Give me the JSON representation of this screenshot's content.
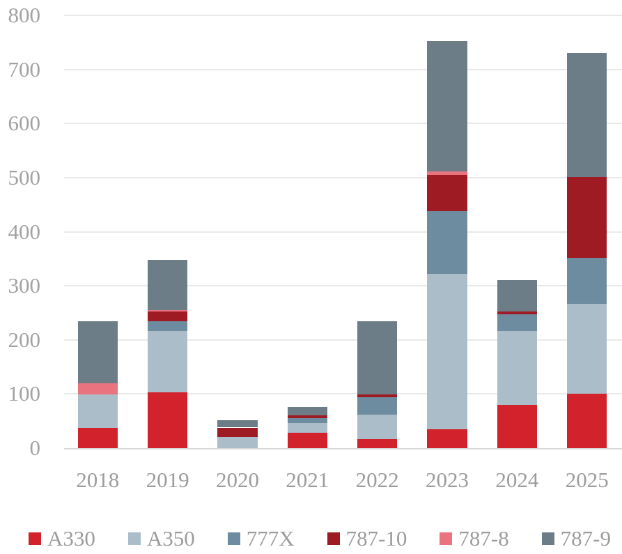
{
  "chart_data": {
    "type": "bar",
    "stacked": true,
    "title": "",
    "xlabel": "",
    "ylabel": "",
    "categories": [
      "2018",
      "2019",
      "2020",
      "2021",
      "2022",
      "2023",
      "2024",
      "2025"
    ],
    "series": [
      {
        "name": "A330",
        "color": "#d2232c",
        "values": [
          37,
          103,
          0,
          28,
          17,
          35,
          80,
          100
        ]
      },
      {
        "name": "A350",
        "color": "#abbdc9",
        "values": [
          62,
          114,
          21,
          19,
          45,
          287,
          137,
          167
        ]
      },
      {
        "name": "777X",
        "color": "#6e8ca0",
        "values": [
          0,
          18,
          0,
          9,
          32,
          116,
          30,
          85
        ]
      },
      {
        "name": "787-10",
        "color": "#9e1b23",
        "values": [
          0,
          17,
          17,
          4,
          5,
          67,
          6,
          149
        ]
      },
      {
        "name": "787-8",
        "color": "#e9737f",
        "values": [
          21,
          3,
          0,
          0,
          0,
          6,
          0,
          0
        ]
      },
      {
        "name": "787-9",
        "color": "#6d7d87",
        "values": [
          115,
          93,
          13,
          16,
          135,
          241,
          57,
          230
        ]
      }
    ],
    "totals": [
      235,
      348,
      51,
      76,
      234,
      752,
      310,
      731
    ],
    "ylim": [
      0,
      800
    ],
    "ytick_interval": 100,
    "yticks": [
      "0",
      "100",
      "200",
      "300",
      "400",
      "500",
      "600",
      "700",
      "800"
    ],
    "grid": true,
    "legend_position": "bottom",
    "legend_items": [
      "A330",
      "A350",
      "777X",
      "787-10",
      "787-8",
      "787-9"
    ]
  },
  "colors": {
    "background": "#ffffff",
    "gridline": "#e9e9e9",
    "axis_line": "#d7d7d7",
    "tick_label": "#a2a2a2",
    "category_label": "#9c9c9c",
    "legend_label": "#9c9c9c"
  }
}
